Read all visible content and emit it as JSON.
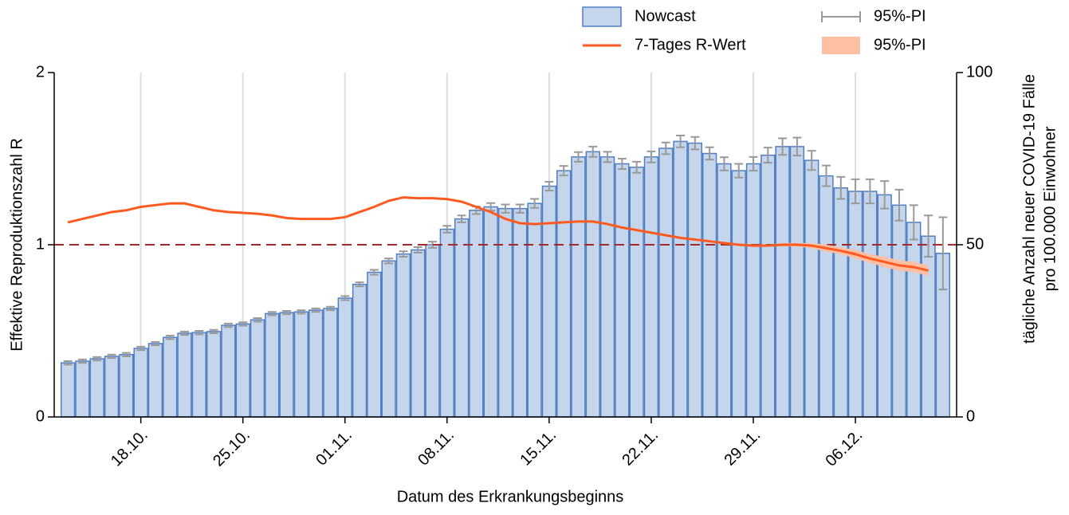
{
  "chart_data": {
    "type": "bar-line",
    "xlabel": "Datum des Erkrankungsbeginns",
    "ylabel": "Effektive Reproduktionszahl R",
    "y2label": [
      "tägliche Anzahl neuer COVID-19 Fälle",
      "pro 100.000 Einwohner"
    ],
    "categories": [
      null,
      null,
      null,
      null,
      null,
      "18.10.",
      null,
      null,
      null,
      null,
      null,
      null,
      "25.10.",
      null,
      null,
      null,
      null,
      null,
      null,
      "01.11.",
      null,
      null,
      null,
      null,
      null,
      null,
      "08.11.",
      null,
      null,
      null,
      null,
      null,
      null,
      "15.11.",
      null,
      null,
      null,
      null,
      null,
      null,
      "22.11.",
      null,
      null,
      null,
      null,
      null,
      null,
      "29.11.",
      null,
      null,
      null,
      null,
      null,
      null,
      "06.12.",
      null,
      null,
      null,
      null,
      null,
      null
    ],
    "ylim": [
      0,
      2
    ],
    "yticks": [
      0,
      1,
      2
    ],
    "y2lim": [
      0,
      100
    ],
    "y2ticks": [
      0,
      50,
      100
    ],
    "hline": 1,
    "hline_color": "#a52a2a",
    "grid": true,
    "series": [
      {
        "name": "Nowcast",
        "type": "bar",
        "axis": "y2",
        "color": "#c5d6ec",
        "edge_color": "#4f7fc2",
        "error_name": "95%-PI",
        "error_color": "#999999",
        "values": [
          15.7,
          16.2,
          16.9,
          17.6,
          18.1,
          19.9,
          21.3,
          23.1,
          24.3,
          24.5,
          24.8,
          26.6,
          27,
          28.2,
          30,
          30.3,
          30.5,
          31,
          31.5,
          34.5,
          38.5,
          42,
          45.3,
          47.3,
          48.5,
          50,
          54.5,
          57.5,
          60,
          61,
          60.5,
          60.5,
          62,
          67,
          71.5,
          75.5,
          77,
          75.5,
          73.5,
          72.5,
          75.5,
          78,
          80,
          79.5,
          76.5,
          73.5,
          71.5,
          73.5,
          76,
          78.5,
          78.5,
          74.5,
          70,
          66.5,
          65.5,
          65.5,
          64.5,
          61.5,
          56.5,
          52.5,
          47.5
        ],
        "errors": [
          0.5,
          0.5,
          0.5,
          0.5,
          0.5,
          0.5,
          0.5,
          0.5,
          0.5,
          0.5,
          0.5,
          0.5,
          0.5,
          0.5,
          0.5,
          0.5,
          0.5,
          0.5,
          0.5,
          0.6,
          0.6,
          0.7,
          0.7,
          0.8,
          0.8,
          0.9,
          1,
          1,
          1.1,
          1.1,
          1.2,
          1.2,
          1.3,
          1.3,
          1.4,
          1.4,
          1.5,
          1.5,
          1.5,
          1.6,
          1.6,
          1.7,
          1.7,
          1.8,
          1.8,
          1.9,
          2,
          2,
          2.2,
          2.4,
          2.6,
          2.8,
          3,
          3.2,
          3.5,
          3.5,
          4,
          4.5,
          5,
          6,
          10.5
        ]
      },
      {
        "name": "7-Tages R-Wert",
        "type": "line",
        "axis": "y",
        "color": "#ff5a1f",
        "band_name": "95%-PI",
        "band_color": "#ffbfa3",
        "values": [
          1.13,
          1.15,
          1.17,
          1.19,
          1.2,
          1.22,
          1.23,
          1.24,
          1.24,
          1.22,
          1.2,
          1.19,
          1.185,
          1.18,
          1.17,
          1.155,
          1.15,
          1.15,
          1.15,
          1.16,
          1.19,
          1.22,
          1.255,
          1.275,
          1.27,
          1.27,
          1.265,
          1.25,
          1.22,
          1.19,
          1.15,
          1.125,
          1.12,
          1.125,
          1.13,
          1.135,
          1.135,
          1.12,
          1.1,
          1.085,
          1.07,
          1.055,
          1.04,
          1.03,
          1.02,
          1.01,
          1,
          0.995,
          0.995,
          1,
          1,
          0.995,
          0.98,
          0.965,
          0.945,
          0.92,
          0.9,
          0.88,
          0.87,
          0.85,
          null
        ],
        "lower": [
          null,
          null,
          null,
          null,
          null,
          null,
          null,
          null,
          null,
          null,
          null,
          null,
          null,
          null,
          null,
          null,
          null,
          null,
          null,
          null,
          null,
          null,
          null,
          null,
          null,
          null,
          null,
          null,
          null,
          null,
          null,
          null,
          null,
          null,
          null,
          null,
          null,
          null,
          null,
          null,
          null,
          null,
          null,
          null,
          null,
          null,
          null,
          null,
          0.99,
          0.99,
          0.99,
          0.98,
          0.96,
          0.945,
          0.92,
          0.895,
          0.87,
          0.85,
          0.84,
          0.82,
          null
        ],
        "upper": [
          null,
          null,
          null,
          null,
          null,
          null,
          null,
          null,
          null,
          null,
          null,
          null,
          null,
          null,
          null,
          null,
          null,
          null,
          null,
          null,
          null,
          null,
          null,
          null,
          null,
          null,
          null,
          null,
          null,
          null,
          null,
          null,
          null,
          null,
          null,
          null,
          null,
          null,
          null,
          null,
          null,
          null,
          null,
          null,
          null,
          null,
          null,
          null,
          1,
          1.01,
          1.01,
          1.01,
          1,
          0.985,
          0.97,
          0.945,
          0.93,
          0.91,
          0.9,
          0.88,
          null
        ]
      }
    ]
  }
}
